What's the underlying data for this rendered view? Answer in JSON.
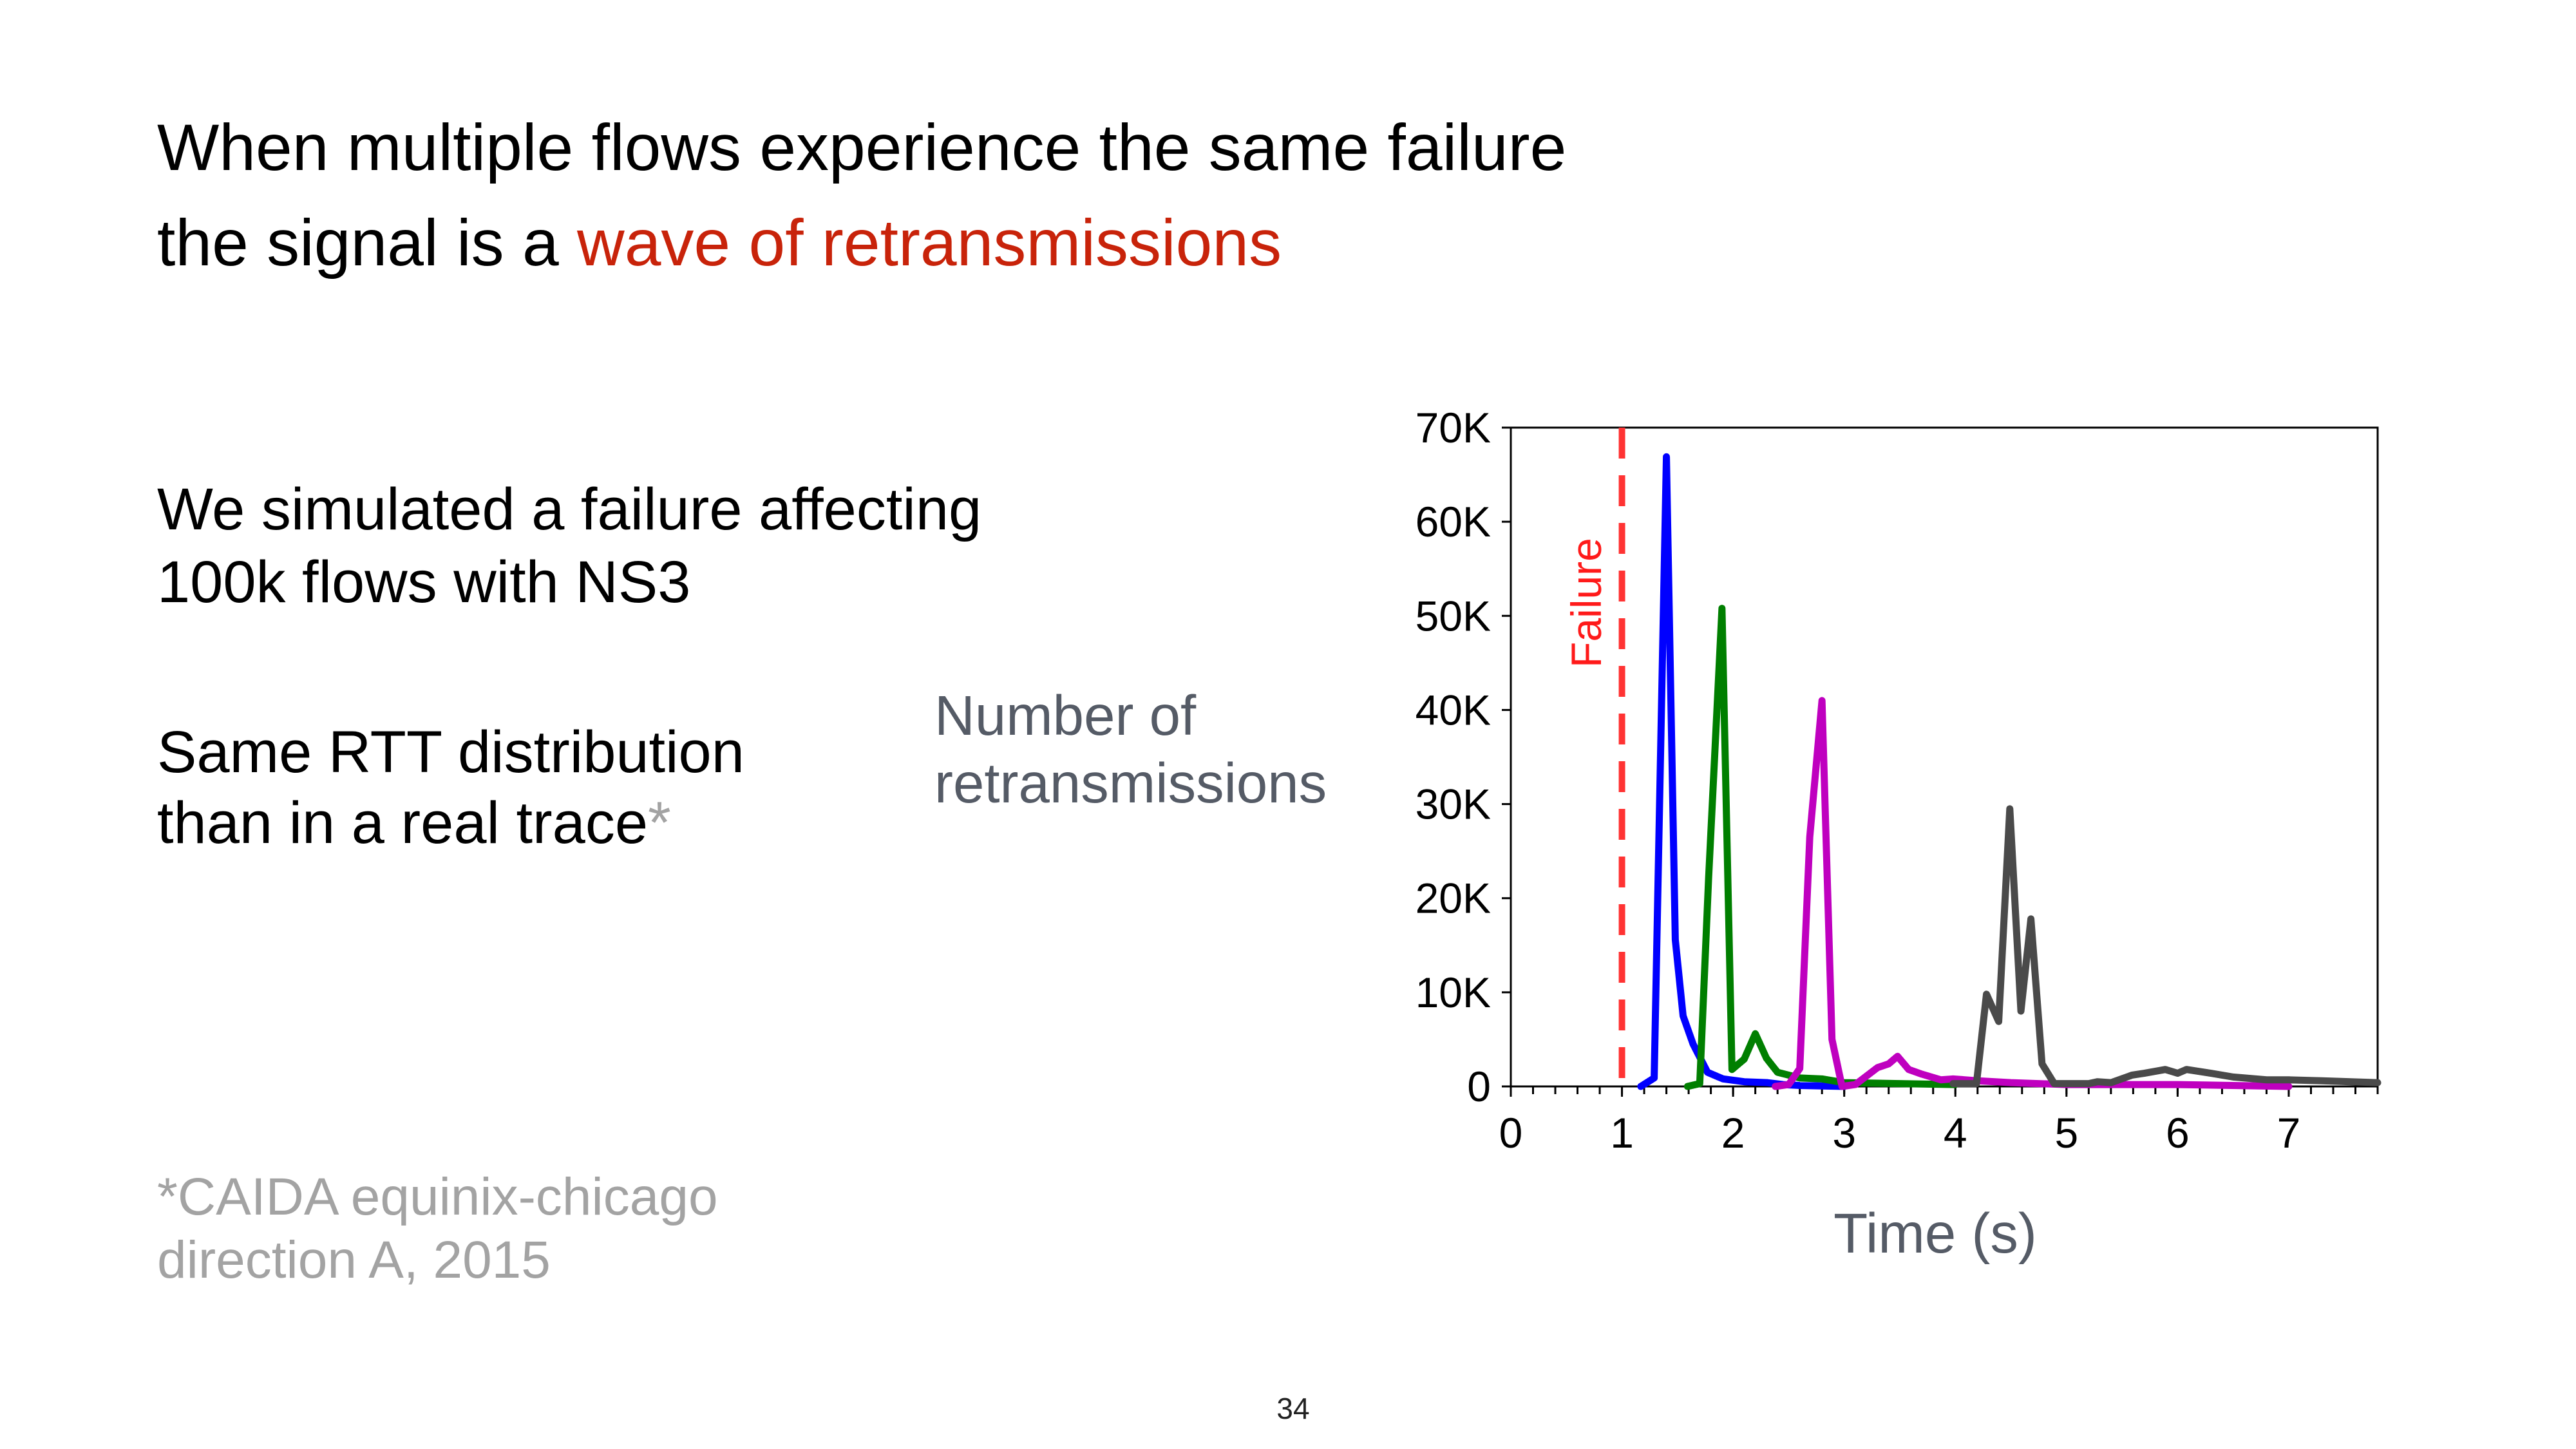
{
  "title": {
    "line1": "When multiple flows experience the same failure",
    "line2_prefix": "the signal is a ",
    "line2_highlight": "wave of retransmissions"
  },
  "body": {
    "para1": [
      "We simulated a failure affecting",
      "100k flows with NS3"
    ],
    "para2": [
      "Same RTT distribution",
      "than in a real trace"
    ],
    "para2_asterisk": "*"
  },
  "footnote": [
    "*CAIDA equinix-chicago",
    "direction A, 2015"
  ],
  "slide_number": "34",
  "colors": {
    "highlight": "#c8230a",
    "failure_line": "#ff3333",
    "axis_label": "#555b66"
  },
  "chart_data": {
    "type": "line",
    "xlabel": "Time (s)",
    "ylabel": "Number of retransmissions",
    "xlim": [
      0,
      7.8
    ],
    "ylim": [
      0,
      70000
    ],
    "xticks": [
      0,
      1,
      2,
      3,
      4,
      5,
      6,
      7
    ],
    "xtick_labels": [
      "0",
      "1",
      "2",
      "3",
      "4",
      "5",
      "6",
      "7"
    ],
    "x_minor_step": 0.2,
    "yticks": [
      0,
      10000,
      20000,
      30000,
      40000,
      50000,
      60000,
      70000
    ],
    "ytick_labels": [
      "0",
      "10K",
      "20K",
      "30K",
      "40K",
      "50K",
      "60K",
      "70K"
    ],
    "grid": false,
    "annotation": {
      "label": "Failure",
      "x": 1,
      "style": "dashed",
      "color": "#ff3333"
    },
    "series": [
      {
        "color": "#0000ff",
        "points": [
          [
            1.17,
            0
          ],
          [
            1.29,
            900
          ],
          [
            1.4,
            66900
          ],
          [
            1.48,
            15600
          ],
          [
            1.55,
            7500
          ],
          [
            1.64,
            4500
          ],
          [
            1.77,
            1500
          ],
          [
            1.91,
            800
          ],
          [
            2.1,
            500
          ],
          [
            2.31,
            400
          ],
          [
            2.45,
            200
          ],
          [
            2.6,
            100
          ],
          [
            3.0,
            0
          ]
        ]
      },
      {
        "color": "#007f00",
        "points": [
          [
            1.59,
            0
          ],
          [
            1.7,
            300
          ],
          [
            1.78,
            22200
          ],
          [
            1.9,
            50800
          ],
          [
            1.99,
            1800
          ],
          [
            2.1,
            2900
          ],
          [
            2.2,
            5600
          ],
          [
            2.3,
            3000
          ],
          [
            2.4,
            1500
          ],
          [
            2.5,
            1200
          ],
          [
            2.6,
            900
          ],
          [
            2.8,
            800
          ],
          [
            3.0,
            400
          ],
          [
            3.5,
            300
          ],
          [
            4.0,
            200
          ]
        ]
      },
      {
        "color": "#bf00bf",
        "points": [
          [
            2.38,
            0
          ],
          [
            2.5,
            200
          ],
          [
            2.6,
            1900
          ],
          [
            2.69,
            26500
          ],
          [
            2.8,
            41000
          ],
          [
            2.89,
            5000
          ],
          [
            2.98,
            0
          ],
          [
            3.1,
            200
          ],
          [
            3.3,
            2000
          ],
          [
            3.4,
            2400
          ],
          [
            3.48,
            3200
          ],
          [
            3.58,
            1800
          ],
          [
            3.7,
            1300
          ],
          [
            3.87,
            700
          ],
          [
            3.98,
            800
          ],
          [
            4.2,
            600
          ],
          [
            4.5,
            400
          ],
          [
            5.0,
            200
          ],
          [
            6.0,
            200
          ],
          [
            7.0,
            0
          ]
        ]
      },
      {
        "color": "#4a4a4a",
        "points": [
          [
            3.98,
            300
          ],
          [
            4.19,
            300
          ],
          [
            4.28,
            9800
          ],
          [
            4.39,
            6900
          ],
          [
            4.49,
            29500
          ],
          [
            4.59,
            8000
          ],
          [
            4.68,
            17800
          ],
          [
            4.78,
            2400
          ],
          [
            4.89,
            300
          ],
          [
            5.2,
            300
          ],
          [
            5.28,
            500
          ],
          [
            5.4,
            400
          ],
          [
            5.59,
            1200
          ],
          [
            5.7,
            1400
          ],
          [
            5.89,
            1800
          ],
          [
            6.0,
            1400
          ],
          [
            6.08,
            1800
          ],
          [
            6.3,
            1400
          ],
          [
            6.5,
            1000
          ],
          [
            6.8,
            700
          ],
          [
            7.0,
            700
          ],
          [
            7.3,
            600
          ],
          [
            7.8,
            400
          ]
        ]
      }
    ]
  }
}
